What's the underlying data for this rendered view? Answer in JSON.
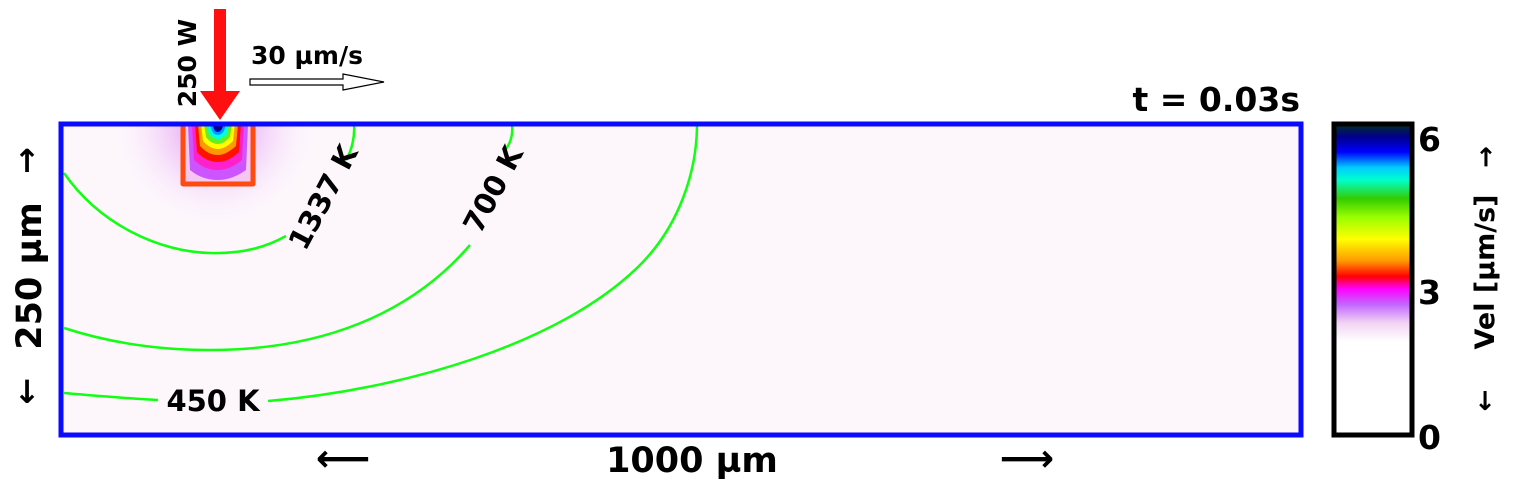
{
  "time_label": "t = 0.03s",
  "laser": {
    "power_label": "250 W",
    "speed_label": "30 µm/s",
    "arrow_color": "#ff0f0f"
  },
  "domain": {
    "width_label": "1000 µm",
    "height_label": "250 µm",
    "border_color": "#0a0aff",
    "background_color": "#fdf7fc"
  },
  "melt_pool_outline_color": "#ff4a10",
  "isotherms": {
    "line_color": "#11ff11",
    "labels": [
      {
        "text": "1337 K"
      },
      {
        "text": "700 K"
      },
      {
        "text": "450 K"
      }
    ]
  },
  "colorbar": {
    "label": "Vel [µm/s]",
    "ticks": [
      "6",
      "3",
      "0"
    ],
    "range": [
      0,
      6
    ],
    "stops": [
      "#ffffff",
      "#ffffff",
      "#f4d6f4",
      "#cc66ff",
      "#ff00ff",
      "#ff0000",
      "#ffa000",
      "#ffff00",
      "#a0ff00",
      "#30d000",
      "#00ffff",
      "#00a0ff",
      "#0000ff",
      "#0000a0",
      "#003020"
    ]
  },
  "arrows": {
    "up": "↑",
    "down": "↓",
    "left": "⟵",
    "right": "⟶"
  }
}
